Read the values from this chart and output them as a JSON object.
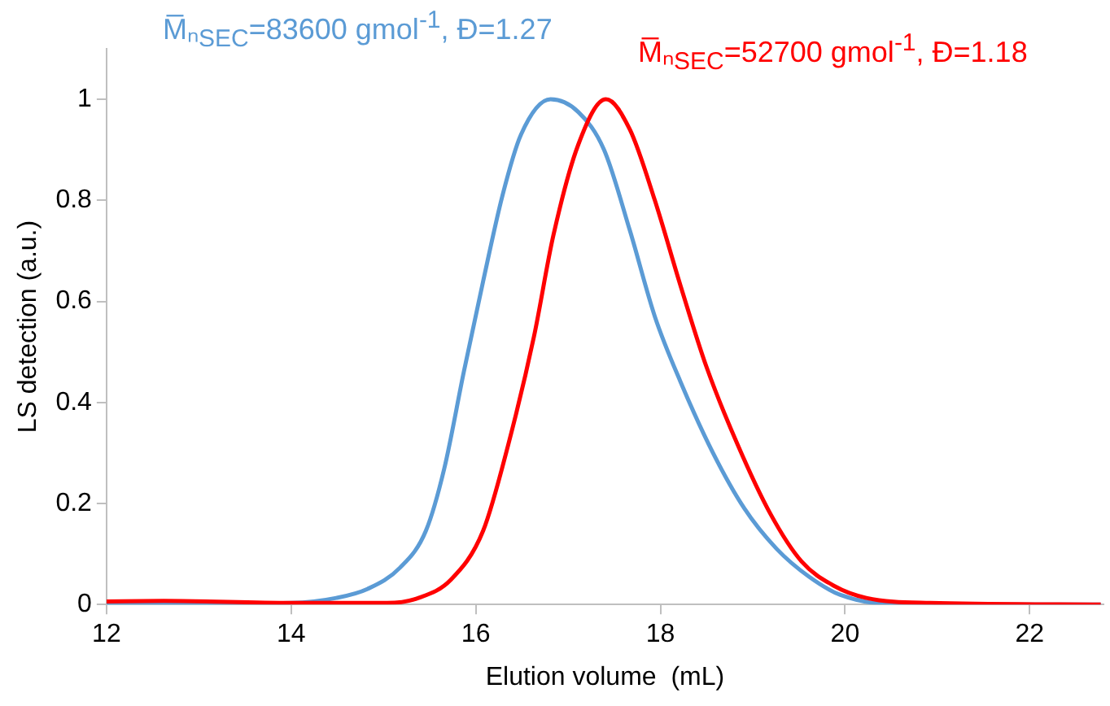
{
  "chart_data": {
    "type": "line",
    "xlabel": "Elution volume  (mL)",
    "ylabel": "LS detection (a.u.)",
    "annotations": [
      "M̅ₙ$_{SEC}$=83600 gmol$^{-1}$, Đ=1.27",
      "M̅ₙ$_{SEC}$=52700 gmol$^{-1}$, Đ=1.18"
    ],
    "series": [
      {
        "color": "#5b9bd5",
        "x": [
          12,
          14,
          14.49,
          14.83,
          15.18,
          15.46,
          15.66,
          15.87,
          16.08,
          16.29,
          16.49,
          16.81,
          17.11,
          17.39,
          17.67,
          17.94,
          18.22,
          18.57,
          18.91,
          19.26,
          19.61,
          19.95,
          20.57,
          22.77
        ],
        "values": [
          0,
          0.003,
          0.013,
          0.031,
          0.073,
          0.146,
          0.27,
          0.46,
          0.64,
          0.81,
          0.93,
          1,
          0.975,
          0.9,
          0.74,
          0.57,
          0.44,
          0.3,
          0.19,
          0.11,
          0.055,
          0.019,
          0,
          0
        ]
      },
      {
        "color": "#ff0000",
        "x": [
          12,
          12.62,
          14,
          15.04,
          15.38,
          15.73,
          16.08,
          16.35,
          16.63,
          16.84,
          17.11,
          17.41,
          17.67,
          17.94,
          18.22,
          18.5,
          18.84,
          19.19,
          19.53,
          19.88,
          20.23,
          20.92,
          22.77
        ],
        "values": [
          0.006,
          0.007,
          0.003,
          0.003,
          0.013,
          0.049,
          0.146,
          0.315,
          0.53,
          0.73,
          0.91,
          1,
          0.94,
          0.8,
          0.63,
          0.47,
          0.315,
          0.18,
          0.085,
          0.037,
          0.013,
          0.003,
          0
        ]
      }
    ],
    "xlim": [
      12,
      22.8
    ],
    "xticks": [
      12,
      14,
      16,
      18,
      20,
      22
    ],
    "ylim": [
      0,
      1.1
    ],
    "yticks": [
      0,
      0.2,
      0.4,
      0.6,
      0.8,
      1
    ],
    "grid": false,
    "legend": false,
    "marker": "none",
    "line_style": "solid"
  }
}
